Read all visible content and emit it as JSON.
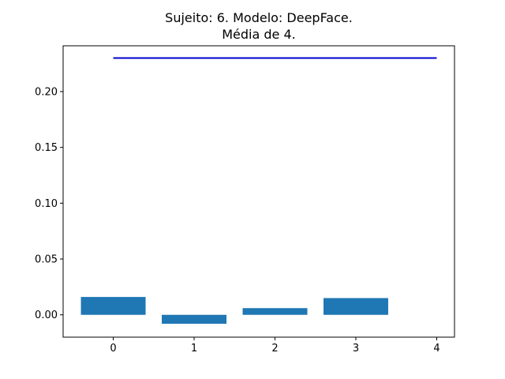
{
  "chart_data": {
    "type": "bar",
    "title": "Sujeito: 6. Modelo: DeepFace.",
    "subtitle": "Média de 4.",
    "xlabel": "",
    "ylabel": "",
    "categories": [
      0,
      1,
      2,
      3
    ],
    "values": [
      0.016,
      -0.008,
      0.006,
      0.015
    ],
    "bar_color": "#1f77b4",
    "reference_line": {
      "x": [
        0,
        4
      ],
      "y": 0.23,
      "color": "#0000cc"
    },
    "xlim": [
      -0.62,
      4.22
    ],
    "ylim": [
      -0.02,
      0.241
    ],
    "xticks": [
      0,
      1,
      2,
      3,
      4
    ],
    "xtick_labels": [
      "0",
      "1",
      "2",
      "3",
      "4"
    ],
    "yticks": [
      0.0,
      0.05,
      0.1,
      0.15,
      0.2
    ],
    "ytick_labels": [
      "0.00",
      "0.05",
      "0.10",
      "0.15",
      "0.20"
    ],
    "grid": false,
    "legend": "none"
  }
}
